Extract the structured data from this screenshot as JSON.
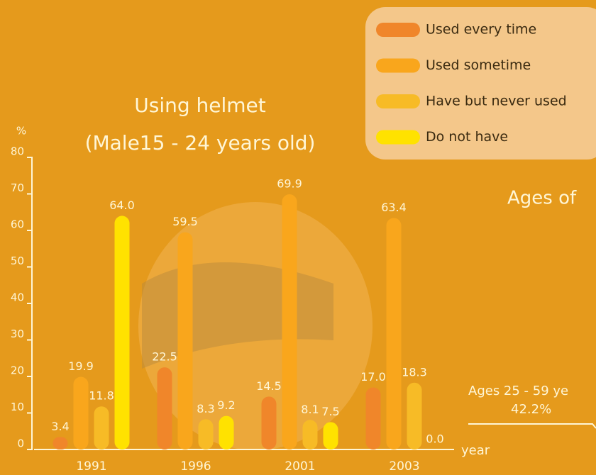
{
  "chart_data": {
    "type": "bar",
    "title": "Using helmet",
    "subtitle": "(Male15 - 24 years old)",
    "y_label": "%",
    "x_label": "year",
    "annotations": [
      "Ages of",
      "Ages 25 - 59 ye",
      "42.2%"
    ],
    "categories": [
      "1991",
      "1996",
      "2001",
      "2003"
    ],
    "series": [
      {
        "name": "Used every time",
        "color": "#f0862a",
        "values": [
          3.4,
          22.5,
          14.5,
          17.0
        ],
        "value_labels": [
          "3.4",
          "22.5",
          "14.5",
          "17.0"
        ]
      },
      {
        "name": "Used sometime",
        "color": "#f9a61c",
        "values": [
          19.9,
          59.5,
          69.9,
          63.4
        ],
        "value_labels": [
          "19.9",
          "59.5",
          "69.9",
          "63.4"
        ]
      },
      {
        "name": "Have but never used",
        "color": "#f7bb26",
        "values": [
          11.8,
          8.3,
          8.1,
          18.3
        ],
        "value_labels": [
          "11.8",
          "8.3",
          "8.1",
          "18.3"
        ]
      },
      {
        "name": "Do not have",
        "color": "#ffe200",
        "values": [
          64.0,
          9.2,
          7.5,
          0.0
        ],
        "value_labels": [
          "64.0",
          "9.2",
          "7.5",
          "0.0"
        ]
      }
    ],
    "ylim": [
      0,
      80
    ],
    "yticks": [
      0,
      10,
      20,
      30,
      40,
      50,
      60,
      70,
      80
    ],
    "legend": "top-right"
  }
}
